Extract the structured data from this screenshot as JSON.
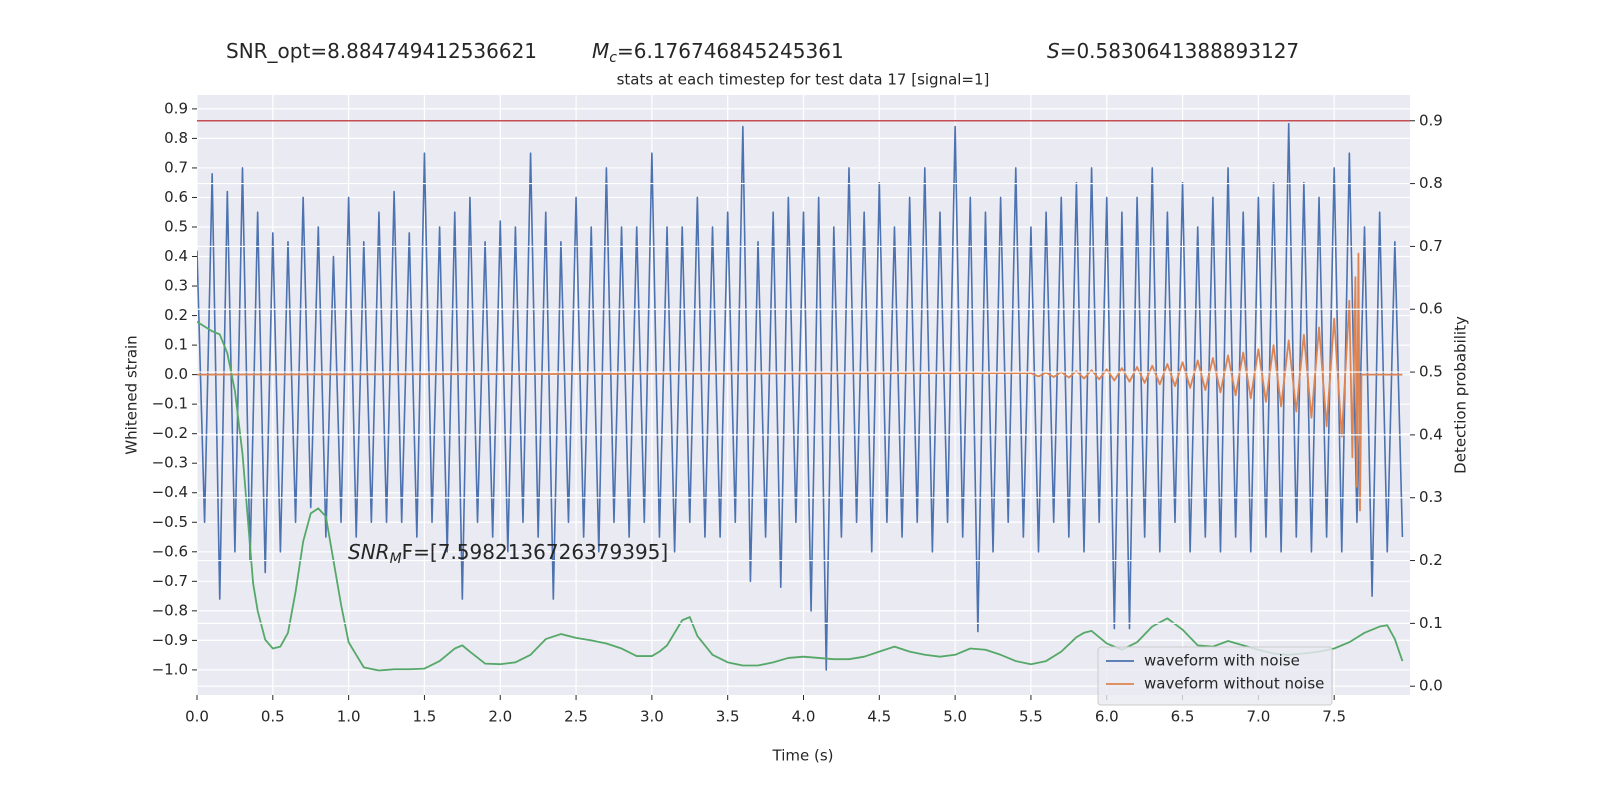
{
  "chart_data": {
    "type": "line",
    "title": "stats at each timestep for test data 17 [signal=1]",
    "annotations": [
      {
        "main": "SNR_opt=8.884749412536621"
      },
      {
        "main": "M",
        "sub": "c",
        "rest": "=6.176746845245361"
      },
      {
        "main": "S",
        "rest": "=0.5830641388893127"
      },
      {
        "main": "SNR",
        "sub": "M",
        "rest": "F=[7.5982136726379395]"
      }
    ],
    "x_label": "Time (s)",
    "y_label": "Whitened strain",
    "y2_label": "Detection probability",
    "xlim": [
      0,
      8.0
    ],
    "ylim": [
      -1.085,
      0.947
    ],
    "y2lim": [
      -0.014,
      0.941
    ],
    "xticks": [
      {
        "value": 0,
        "label": "0.0"
      },
      {
        "value": 0.5,
        "label": "0.5"
      },
      {
        "value": 1,
        "label": "1.0"
      },
      {
        "value": 1.5,
        "label": "1.5"
      },
      {
        "value": 2,
        "label": "2.0"
      },
      {
        "value": 2.5,
        "label": "2.5"
      },
      {
        "value": 3,
        "label": "3.0"
      },
      {
        "value": 3.5,
        "label": "3.5"
      },
      {
        "value": 4,
        "label": "4.0"
      },
      {
        "value": 4.5,
        "label": "4.5"
      },
      {
        "value": 5,
        "label": "5.0"
      },
      {
        "value": 5.5,
        "label": "5.5"
      },
      {
        "value": 6,
        "label": "6.0"
      },
      {
        "value": 6.5,
        "label": "6.5"
      },
      {
        "value": 7,
        "label": "7.0"
      },
      {
        "value": 7.5,
        "label": "7.5"
      }
    ],
    "yticks": [
      {
        "value": -1.0,
        "label": "−1.0"
      },
      {
        "value": -0.9,
        "label": "−0.9"
      },
      {
        "value": -0.8,
        "label": "−0.8"
      },
      {
        "value": -0.7,
        "label": "−0.7"
      },
      {
        "value": -0.6,
        "label": "−0.6"
      },
      {
        "value": -0.5,
        "label": "−0.5"
      },
      {
        "value": -0.4,
        "label": "−0.4"
      },
      {
        "value": -0.3,
        "label": "−0.3"
      },
      {
        "value": -0.2,
        "label": "−0.2"
      },
      {
        "value": -0.1,
        "label": "−0.1"
      },
      {
        "value": 0,
        "label": "0.0"
      },
      {
        "value": 0.1,
        "label": "0.1"
      },
      {
        "value": 0.2,
        "label": "0.2"
      },
      {
        "value": 0.3,
        "label": "0.3"
      },
      {
        "value": 0.4,
        "label": "0.4"
      },
      {
        "value": 0.5,
        "label": "0.5"
      },
      {
        "value": 0.6,
        "label": "0.6"
      },
      {
        "value": 0.7,
        "label": "0.7"
      },
      {
        "value": 0.8,
        "label": "0.8"
      },
      {
        "value": 0.9,
        "label": "0.9"
      }
    ],
    "y2ticks": [
      {
        "value": 0,
        "label": "0.0"
      },
      {
        "value": 0.1,
        "label": "0.1"
      },
      {
        "value": 0.2,
        "label": "0.2"
      },
      {
        "value": 0.3,
        "label": "0.3"
      },
      {
        "value": 0.4,
        "label": "0.4"
      },
      {
        "value": 0.5,
        "label": "0.5"
      },
      {
        "value": 0.6,
        "label": "0.6"
      },
      {
        "value": 0.7,
        "label": "0.7"
      },
      {
        "value": 0.8,
        "label": "0.8"
      },
      {
        "value": 0.9,
        "label": "0.9"
      }
    ],
    "grid": true,
    "legend": "lower right",
    "hlines": [
      {
        "value": 0.9,
        "axis": "y2",
        "color": "#c44e52"
      }
    ],
    "series": [
      {
        "name": "waveform with noise",
        "color": "#4c72b0",
        "x": [
          0,
          0.05,
          0.1,
          0.15,
          0.2,
          0.25,
          0.3,
          0.35,
          0.4,
          0.45,
          0.5,
          0.55,
          0.6,
          0.65,
          0.7,
          0.75,
          0.8,
          0.85,
          0.9,
          0.95,
          1,
          1.05,
          1.1,
          1.15,
          1.2,
          1.25,
          1.3,
          1.35,
          1.4,
          1.45,
          1.5,
          1.55,
          1.6,
          1.65,
          1.7,
          1.75,
          1.8,
          1.85,
          1.9,
          1.95,
          2,
          2.05,
          2.1,
          2.15,
          2.2,
          2.25,
          2.3,
          2.35,
          2.4,
          2.45,
          2.5,
          2.55,
          2.6,
          2.65,
          2.7,
          2.75,
          2.8,
          2.85,
          2.9,
          2.95,
          3,
          3.05,
          3.1,
          3.15,
          3.2,
          3.25,
          3.3,
          3.35,
          3.4,
          3.45,
          3.5,
          3.55,
          3.6,
          3.65,
          3.7,
          3.75,
          3.8,
          3.85,
          3.9,
          3.95,
          4,
          4.05,
          4.1,
          4.15,
          4.2,
          4.25,
          4.3,
          4.35,
          4.4,
          4.45,
          4.5,
          4.55,
          4.6,
          4.65,
          4.7,
          4.75,
          4.8,
          4.85,
          4.9,
          4.95,
          5,
          5.05,
          5.1,
          5.15,
          5.2,
          5.25,
          5.3,
          5.35,
          5.4,
          5.45,
          5.5,
          5.55,
          5.6,
          5.65,
          5.7,
          5.75,
          5.8,
          5.85,
          5.9,
          5.95,
          6,
          6.05,
          6.1,
          6.15,
          6.2,
          6.25,
          6.3,
          6.35,
          6.4,
          6.45,
          6.5,
          6.55,
          6.6,
          6.65,
          6.7,
          6.75,
          6.8,
          6.85,
          6.9,
          6.95,
          7,
          7.05,
          7.1,
          7.15,
          7.2,
          7.25,
          7.3,
          7.35,
          7.4,
          7.45,
          7.5,
          7.55,
          7.6,
          7.65,
          7.7,
          7.75,
          7.8,
          7.85,
          7.9,
          7.95
        ],
        "values": [
          0.42,
          -0.5,
          0.68,
          -0.76,
          0.62,
          -0.6,
          0.7,
          -0.63,
          0.55,
          -0.67,
          0.48,
          -0.6,
          0.45,
          -0.5,
          0.6,
          -0.45,
          0.5,
          -0.55,
          0.4,
          -0.5,
          0.6,
          -0.55,
          0.45,
          -0.5,
          0.55,
          -0.5,
          0.62,
          -0.5,
          0.48,
          -0.55,
          0.75,
          -0.5,
          0.5,
          -0.6,
          0.55,
          -0.76,
          0.6,
          -0.5,
          0.45,
          -0.55,
          0.52,
          -0.6,
          0.5,
          -0.5,
          0.75,
          -0.55,
          0.55,
          -0.76,
          0.45,
          -0.5,
          0.6,
          -0.55,
          0.5,
          -0.6,
          0.7,
          -0.5,
          0.5,
          -0.55,
          0.5,
          -0.5,
          0.75,
          -0.55,
          0.5,
          -0.6,
          0.5,
          -0.5,
          0.6,
          -0.55,
          0.5,
          -0.55,
          0.55,
          -0.5,
          0.84,
          -0.7,
          0.45,
          -0.55,
          0.55,
          -0.72,
          0.6,
          -0.5,
          0.55,
          -0.8,
          0.6,
          -1.0,
          0.5,
          -0.55,
          0.7,
          -0.5,
          0.55,
          -0.6,
          0.65,
          -0.5,
          0.5,
          -0.55,
          0.6,
          -0.5,
          0.7,
          -0.6,
          0.55,
          -0.5,
          0.84,
          -0.55,
          0.6,
          -0.87,
          0.55,
          -0.6,
          0.6,
          -0.5,
          0.7,
          -0.55,
          0.5,
          -0.6,
          0.55,
          -0.5,
          0.6,
          -0.55,
          0.65,
          -0.6,
          0.7,
          -0.5,
          0.6,
          -0.86,
          0.55,
          -0.86,
          0.6,
          -0.55,
          0.7,
          -0.6,
          0.55,
          -0.5,
          0.65,
          -0.6,
          0.5,
          -0.55,
          0.6,
          -0.6,
          0.7,
          -0.55,
          0.55,
          -0.6,
          0.6,
          -0.55,
          0.65,
          -0.6,
          0.85,
          -0.55,
          0.65,
          -0.6,
          0.6,
          -0.55,
          0.7,
          -0.6,
          0.75,
          -0.5,
          0.5,
          -0.75,
          0.55,
          -0.6,
          0.45,
          -0.55
        ]
      },
      {
        "name": "waveform without noise",
        "color": "#dd8452",
        "x": [
          0,
          5.5,
          5.55,
          5.6,
          5.65,
          5.7,
          5.75,
          5.8,
          5.85,
          5.9,
          5.95,
          6,
          6.05,
          6.1,
          6.15,
          6.2,
          6.25,
          6.3,
          6.35,
          6.4,
          6.45,
          6.5,
          6.55,
          6.6,
          6.65,
          6.7,
          6.75,
          6.8,
          6.85,
          6.9,
          6.95,
          7,
          7.05,
          7.1,
          7.15,
          7.2,
          7.25,
          7.3,
          7.35,
          7.4,
          7.45,
          7.5,
          7.55,
          7.6,
          7.62,
          7.64,
          7.65,
          7.66,
          7.67,
          7.68,
          7.95
        ],
        "values": [
          0,
          0.005,
          -0.006,
          0.007,
          -0.008,
          0.009,
          -0.01,
          0.012,
          -0.013,
          0.015,
          -0.016,
          0.018,
          -0.02,
          0.022,
          -0.024,
          0.026,
          -0.028,
          0.03,
          -0.033,
          0.036,
          -0.039,
          0.042,
          -0.045,
          0.048,
          -0.052,
          0.056,
          -0.06,
          0.065,
          -0.07,
          0.075,
          -0.08,
          0.086,
          -0.092,
          0.1,
          -0.108,
          0.116,
          -0.125,
          0.135,
          -0.146,
          0.16,
          -0.175,
          0.19,
          -0.21,
          0.25,
          -0.28,
          0.33,
          -0.38,
          0.41,
          -0.46,
          0,
          0
        ]
      },
      {
        "color": "#55a868",
        "axis": "y2",
        "x": [
          0,
          0.1,
          0.15,
          0.2,
          0.25,
          0.3,
          0.37,
          0.4,
          0.45,
          0.5,
          0.55,
          0.6,
          0.65,
          0.7,
          0.75,
          0.8,
          0.85,
          0.9,
          0.95,
          1,
          1.05,
          1.1,
          1.2,
          1.3,
          1.4,
          1.5,
          1.6,
          1.7,
          1.75,
          1.8,
          1.9,
          2,
          2.1,
          2.2,
          2.3,
          2.4,
          2.5,
          2.6,
          2.7,
          2.8,
          2.9,
          3,
          3.05,
          3.1,
          3.2,
          3.25,
          3.3,
          3.4,
          3.5,
          3.6,
          3.7,
          3.8,
          3.9,
          4,
          4.1,
          4.2,
          4.3,
          4.4,
          4.5,
          4.6,
          4.7,
          4.8,
          4.9,
          5,
          5.1,
          5.2,
          5.3,
          5.4,
          5.5,
          5.6,
          5.7,
          5.8,
          5.85,
          5.9,
          6,
          6.1,
          6.2,
          6.3,
          6.4,
          6.5,
          6.6,
          6.7,
          6.8,
          6.9,
          7,
          7.1,
          7.2,
          7.3,
          7.4,
          7.5,
          7.6,
          7.7,
          7.8,
          7.85,
          7.9,
          7.95
        ],
        "values": [
          0.58,
          0.565,
          0.56,
          0.53,
          0.47,
          0.37,
          0.164,
          0.12,
          0.074,
          0.06,
          0.063,
          0.085,
          0.15,
          0.23,
          0.275,
          0.283,
          0.27,
          0.2,
          0.13,
          0.07,
          0.05,
          0.03,
          0.025,
          0.027,
          0.027,
          0.028,
          0.04,
          0.06,
          0.065,
          0.055,
          0.036,
          0.035,
          0.038,
          0.05,
          0.075,
          0.083,
          0.077,
          0.073,
          0.068,
          0.06,
          0.048,
          0.048,
          0.055,
          0.065,
          0.105,
          0.11,
          0.08,
          0.05,
          0.038,
          0.033,
          0.033,
          0.038,
          0.045,
          0.047,
          0.045,
          0.043,
          0.043,
          0.047,
          0.055,
          0.063,
          0.055,
          0.05,
          0.047,
          0.05,
          0.06,
          0.058,
          0.05,
          0.04,
          0.035,
          0.04,
          0.055,
          0.078,
          0.085,
          0.088,
          0.068,
          0.058,
          0.07,
          0.095,
          0.108,
          0.09,
          0.065,
          0.063,
          0.072,
          0.065,
          0.058,
          0.052,
          0.05,
          0.052,
          0.055,
          0.06,
          0.07,
          0.085,
          0.095,
          0.097,
          0.075,
          0.04
        ]
      }
    ]
  }
}
